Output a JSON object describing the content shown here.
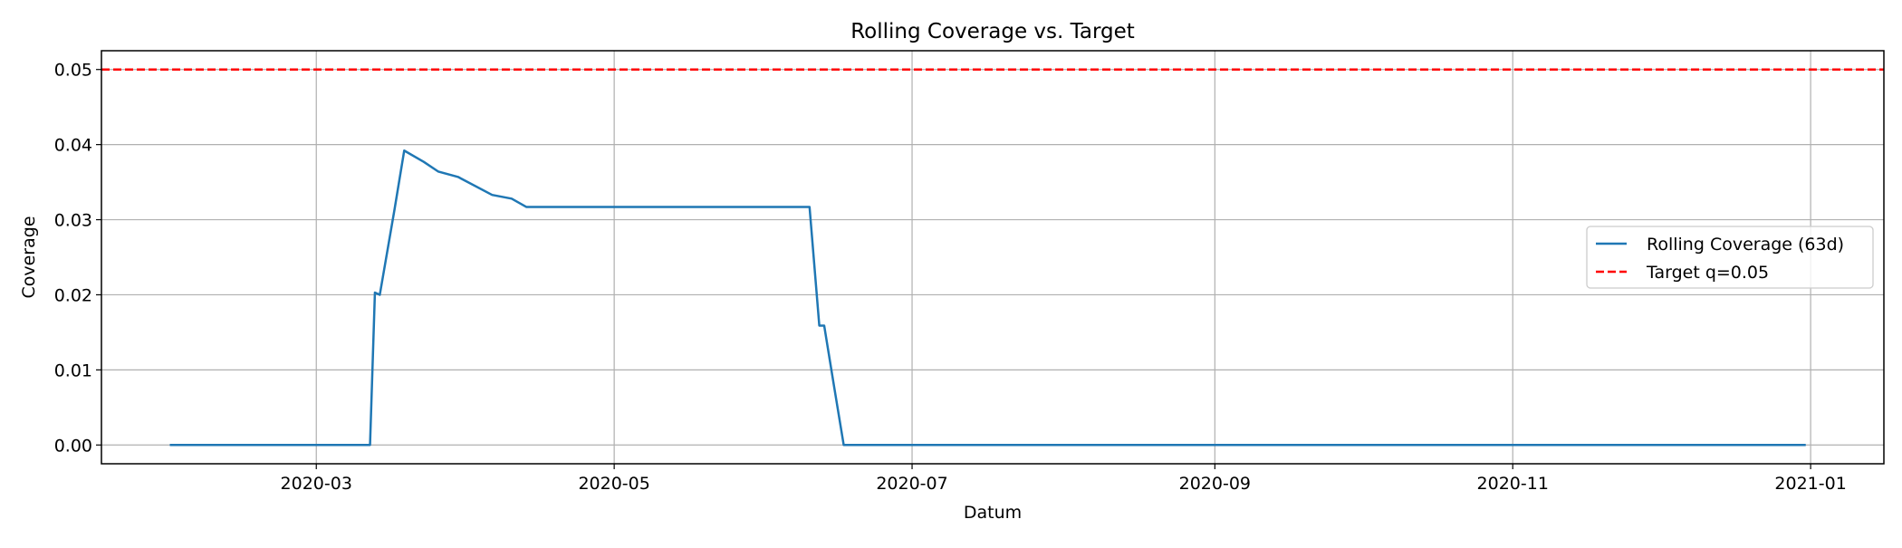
{
  "chart_data": {
    "type": "line",
    "title": "Rolling Coverage vs. Target",
    "xlabel": "Datum",
    "ylabel": "Coverage",
    "x_axis_type": "date",
    "xlim": [
      "2020-01-17",
      "2021-01-16"
    ],
    "ylim": [
      -0.0025,
      0.0525
    ],
    "x_ticks": [
      "2020-03",
      "2020-05",
      "2020-07",
      "2020-09",
      "2020-11",
      "2021-01"
    ],
    "y_ticks": [
      "0.00",
      "0.01",
      "0.02",
      "0.03",
      "0.04",
      "0.05"
    ],
    "grid": true,
    "legend_position": "center-right",
    "series": [
      {
        "name": "Rolling Coverage (63d)",
        "color": "#1f77b4",
        "style": "solid",
        "points": [
          {
            "x": "2020-01-31",
            "y": 0.0
          },
          {
            "x": "2020-03-12",
            "y": 0.0
          },
          {
            "x": "2020-03-13",
            "y": 0.0203
          },
          {
            "x": "2020-03-14",
            "y": 0.02
          },
          {
            "x": "2020-03-17",
            "y": 0.0313
          },
          {
            "x": "2020-03-19",
            "y": 0.0392
          },
          {
            "x": "2020-03-23",
            "y": 0.0377
          },
          {
            "x": "2020-03-26",
            "y": 0.0364
          },
          {
            "x": "2020-03-30",
            "y": 0.0357
          },
          {
            "x": "2020-04-06",
            "y": 0.0333
          },
          {
            "x": "2020-04-10",
            "y": 0.0328
          },
          {
            "x": "2020-04-13",
            "y": 0.0317
          },
          {
            "x": "2020-06-10",
            "y": 0.0317
          },
          {
            "x": "2020-06-12",
            "y": 0.0159
          },
          {
            "x": "2020-06-13",
            "y": 0.0159
          },
          {
            "x": "2020-06-15",
            "y": 0.0079
          },
          {
            "x": "2020-06-17",
            "y": 0.0
          },
          {
            "x": "2020-12-31",
            "y": 0.0
          }
        ]
      },
      {
        "name": "Target q=0.05",
        "color": "#ff0000",
        "style": "dashed",
        "constant_y": 0.05
      }
    ]
  }
}
